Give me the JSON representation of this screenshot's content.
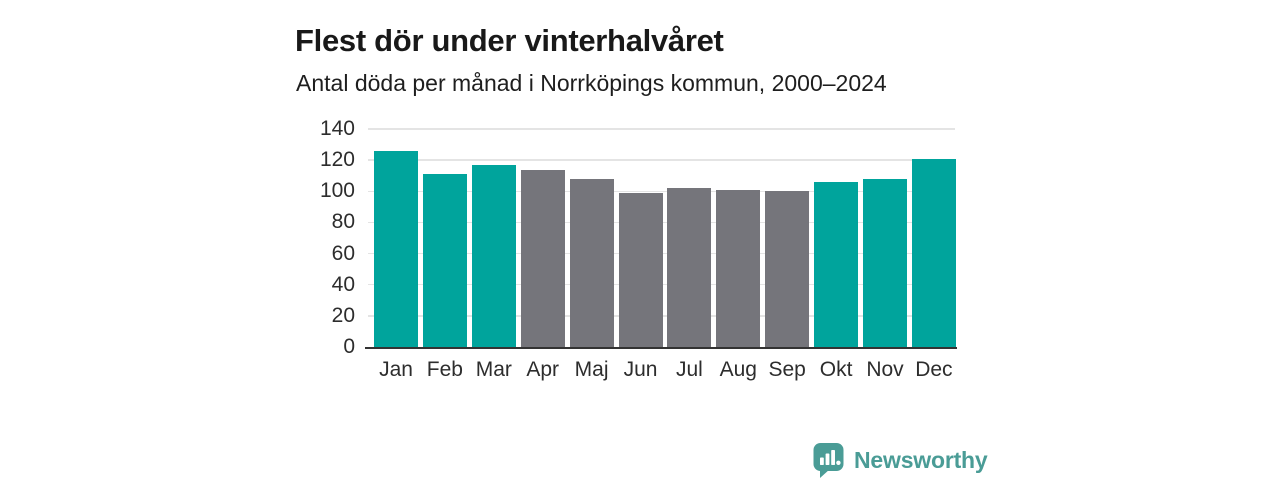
{
  "header": {
    "title": "Flest dör under vinterhalvåret",
    "subtitle": "Antal döda per månad i Norrköpings kommun, 2000–2024"
  },
  "chart_data": {
    "type": "bar",
    "title": "Flest dör under vinterhalvåret",
    "subtitle": "Antal döda per månad i Norrköpings kommun, 2000–2024",
    "categories": [
      "Jan",
      "Feb",
      "Mar",
      "Apr",
      "Maj",
      "Jun",
      "Jul",
      "Aug",
      "Sep",
      "Okt",
      "Nov",
      "Dec"
    ],
    "values": [
      126,
      111,
      117,
      114,
      108,
      99,
      102,
      101,
      100,
      106,
      108,
      121
    ],
    "season": [
      "winter",
      "winter",
      "winter",
      "summer",
      "summer",
      "summer",
      "summer",
      "summer",
      "summer",
      "winter",
      "winter",
      "winter"
    ],
    "palette": {
      "winter": "#00A49C",
      "summer": "#75757B"
    },
    "xlabel": "",
    "ylabel": "",
    "ylim": [
      0,
      140
    ],
    "yticks": [
      0,
      20,
      40,
      60,
      80,
      100,
      120,
      140
    ],
    "grid": true,
    "legend": "none"
  },
  "footer": {
    "brand": "Newsworthy",
    "brand_color": "#4A9C96",
    "logo_icon": "newsworthy-speech-bubble-bar-chart"
  }
}
